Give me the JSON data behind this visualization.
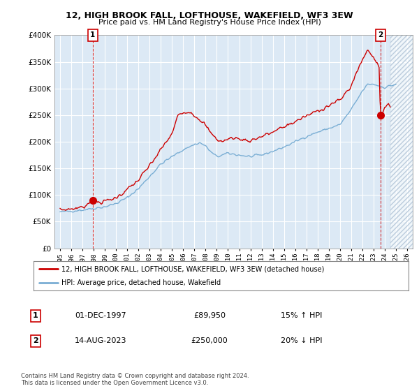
{
  "title": "12, HIGH BROOK FALL, LOFTHOUSE, WAKEFIELD, WF3 3EW",
  "subtitle": "Price paid vs. HM Land Registry's House Price Index (HPI)",
  "legend_line1": "12, HIGH BROOK FALL, LOFTHOUSE, WAKEFIELD, WF3 3EW (detached house)",
  "legend_line2": "HPI: Average price, detached house, Wakefield",
  "footer": "Contains HM Land Registry data © Crown copyright and database right 2024.\nThis data is licensed under the Open Government Licence v3.0.",
  "transaction1_date": "01-DEC-1997",
  "transaction1_price": "£89,950",
  "transaction1_hpi": "15% ↑ HPI",
  "transaction2_date": "14-AUG-2023",
  "transaction2_price": "£250,000",
  "transaction2_hpi": "20% ↓ HPI",
  "price_paid_color": "#cc0000",
  "hpi_color": "#7aaed4",
  "point1_x": 1997.92,
  "point1_y": 89950,
  "point2_x": 2023.62,
  "point2_y": 250000,
  "ylim": [
    0,
    400000
  ],
  "xlim_start": 1994.5,
  "xlim_end": 2026.5,
  "plot_bg_color": "#dce9f5",
  "background_color": "#ffffff",
  "grid_color": "#ffffff",
  "hatch_start": 2024.5,
  "hpi_anchors": [
    [
      1995.0,
      68000
    ],
    [
      1996.0,
      70000
    ],
    [
      1997.0,
      72000
    ],
    [
      1998.0,
      75000
    ],
    [
      1999.0,
      78000
    ],
    [
      2000.0,
      84000
    ],
    [
      2001.0,
      95000
    ],
    [
      2002.0,
      112000
    ],
    [
      2003.0,
      135000
    ],
    [
      2004.0,
      158000
    ],
    [
      2005.0,
      172000
    ],
    [
      2006.0,
      185000
    ],
    [
      2007.0,
      195000
    ],
    [
      2007.5,
      198000
    ],
    [
      2008.0,
      192000
    ],
    [
      2008.5,
      180000
    ],
    [
      2009.0,
      172000
    ],
    [
      2009.5,
      175000
    ],
    [
      2010.0,
      178000
    ],
    [
      2011.0,
      175000
    ],
    [
      2012.0,
      172000
    ],
    [
      2013.0,
      175000
    ],
    [
      2014.0,
      182000
    ],
    [
      2015.0,
      190000
    ],
    [
      2016.0,
      200000
    ],
    [
      2017.0,
      210000
    ],
    [
      2018.0,
      218000
    ],
    [
      2019.0,
      225000
    ],
    [
      2020.0,
      232000
    ],
    [
      2021.0,
      260000
    ],
    [
      2022.0,
      295000
    ],
    [
      2022.5,
      308000
    ],
    [
      2023.0,
      308000
    ],
    [
      2023.5,
      305000
    ],
    [
      2024.0,
      302000
    ],
    [
      2024.5,
      305000
    ],
    [
      2025.0,
      308000
    ]
  ],
  "pp_anchors": [
    [
      1995.0,
      72000
    ],
    [
      1996.0,
      74000
    ],
    [
      1997.0,
      77000
    ],
    [
      1997.9,
      89950
    ],
    [
      1998.3,
      86000
    ],
    [
      1999.0,
      88000
    ],
    [
      2000.0,
      95000
    ],
    [
      2001.0,
      110000
    ],
    [
      2002.0,
      128000
    ],
    [
      2003.0,
      155000
    ],
    [
      2004.0,
      185000
    ],
    [
      2005.0,
      215000
    ],
    [
      2005.5,
      248000
    ],
    [
      2006.0,
      255000
    ],
    [
      2006.5,
      258000
    ],
    [
      2007.0,
      250000
    ],
    [
      2007.5,
      242000
    ],
    [
      2008.0,
      230000
    ],
    [
      2008.5,
      215000
    ],
    [
      2009.0,
      205000
    ],
    [
      2009.5,
      200000
    ],
    [
      2010.0,
      205000
    ],
    [
      2010.5,
      208000
    ],
    [
      2011.0,
      205000
    ],
    [
      2012.0,
      202000
    ],
    [
      2013.0,
      210000
    ],
    [
      2014.0,
      218000
    ],
    [
      2015.0,
      228000
    ],
    [
      2016.0,
      238000
    ],
    [
      2017.0,
      248000
    ],
    [
      2018.0,
      258000
    ],
    [
      2019.0,
      268000
    ],
    [
      2020.0,
      278000
    ],
    [
      2021.0,
      305000
    ],
    [
      2021.5,
      330000
    ],
    [
      2022.0,
      355000
    ],
    [
      2022.5,
      372000
    ],
    [
      2023.0,
      360000
    ],
    [
      2023.5,
      340000
    ],
    [
      2023.62,
      250000
    ],
    [
      2023.8,
      255000
    ],
    [
      2024.0,
      262000
    ],
    [
      2024.5,
      270000
    ]
  ]
}
